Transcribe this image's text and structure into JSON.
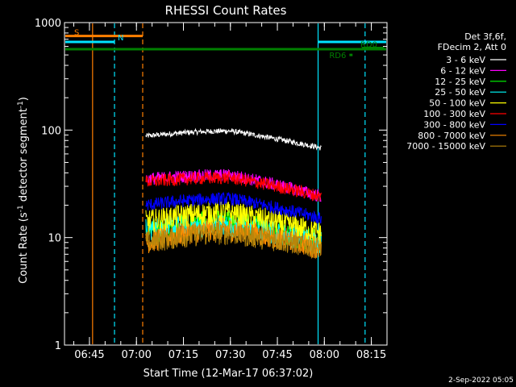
{
  "chart_data": {
    "type": "line",
    "title": "RHESSI Count Rates",
    "xlabel": "Start Time (12-Mar-17 06:37:02)",
    "ylabel": "Count Rate (s⁻¹ detector segment⁻¹)",
    "ylabel_parts": [
      "Count Rate (s",
      "-1",
      " detector segment",
      "-1",
      ")"
    ],
    "footer": "2-Sep-2022 05:05",
    "y_scale": "log",
    "ylim": [
      1,
      1000
    ],
    "xlim": [
      "06:37:02",
      "08:20:00"
    ],
    "x_ticks": [
      "06:45",
      "07:00",
      "07:15",
      "07:30",
      "07:45",
      "08:00",
      "08:15"
    ],
    "y_ticks": [
      "1",
      "10",
      "100",
      "1000"
    ],
    "legend_header": [
      "Det 3f,6f,",
      "FDecim 2, Att 0"
    ],
    "legend_position": "right",
    "series": [
      {
        "name": "3 - 6 keV",
        "color": "#ffffff",
        "start": "07:03",
        "end": "07:59",
        "level_start": 88,
        "level_peak": 98,
        "level_end": 68,
        "peak": "07:30"
      },
      {
        "name": "6 - 12 keV",
        "color": "#ff00ff",
        "start": "07:03",
        "end": "07:59",
        "level_start": 35,
        "level_peak": 38,
        "level_end": 24,
        "peak": "07:30"
      },
      {
        "name": "12 - 25 keV",
        "color": "#00ff00",
        "start": "07:03",
        "end": "07:59",
        "level_start": 11,
        "level_peak": 14,
        "level_end": 9,
        "peak": "07:30"
      },
      {
        "name": "25 - 50 keV",
        "color": "#00ffff",
        "start": "07:03",
        "end": "07:59",
        "level_start": 12,
        "level_peak": 13,
        "level_end": 9,
        "peak": "07:30"
      },
      {
        "name": "50 - 100 keV",
        "color": "#ffff00",
        "start": "07:03",
        "end": "07:59",
        "level_start": 14,
        "level_peak": 17,
        "level_end": 11,
        "peak": "07:30"
      },
      {
        "name": "100 - 300 keV",
        "color": "#ff0000",
        "start": "07:03",
        "end": "07:59",
        "level_start": 33,
        "level_peak": 36,
        "level_end": 24,
        "peak": "07:30"
      },
      {
        "name": "300 - 800 keV",
        "color": "#0000ff",
        "start": "07:03",
        "end": "07:59",
        "level_start": 20,
        "level_peak": 23,
        "level_end": 15,
        "peak": "07:30"
      },
      {
        "name": "800 - 7000 keV",
        "color": "#ff8c00",
        "start": "07:03",
        "end": "07:59",
        "level_start": 9,
        "level_peak": 12,
        "level_end": 8,
        "peak": "07:30"
      },
      {
        "name": "7000 - 15000 keV",
        "color": "#b8860b",
        "start": "07:03",
        "end": "07:59",
        "level_start": 9,
        "level_peak": 11,
        "level_end": 8,
        "peak": "07:30"
      }
    ],
    "annotations": {
      "saa": {
        "label": "S",
        "color": "#ff7f00",
        "start": "06:37:02",
        "end": "07:02",
        "level": 750
      },
      "night": {
        "label": "N",
        "color": "#00e5ff",
        "start": "06:37:02",
        "end": "06:53",
        "level": 660
      },
      "night2": {
        "color": "#00e5ff",
        "start": "07:58",
        "end": "08:20",
        "level": 660
      },
      "day_bar": {
        "color": "#008000",
        "start": "06:37:02",
        "end": "08:20",
        "level": 565
      },
      "rd6": {
        "label": "RD6",
        "color": "#008000",
        "start": "08:08",
        "end": "08:09",
        "level": 500
      },
      "rd0": {
        "label": "RD0",
        "color": "#008000",
        "start": "08:12",
        "end": "08:19",
        "level": 580
      },
      "vlines": [
        {
          "time": "06:46",
          "color": "#ff7f00",
          "style": "solid"
        },
        {
          "time": "06:53",
          "color": "#00e5ff",
          "style": "dashed"
        },
        {
          "time": "07:02",
          "color": "#ff7f00",
          "style": "dashed"
        },
        {
          "time": "07:58",
          "color": "#00e5ff",
          "style": "solid"
        },
        {
          "time": "08:13",
          "color": "#00e5ff",
          "style": "dashed"
        }
      ]
    }
  }
}
